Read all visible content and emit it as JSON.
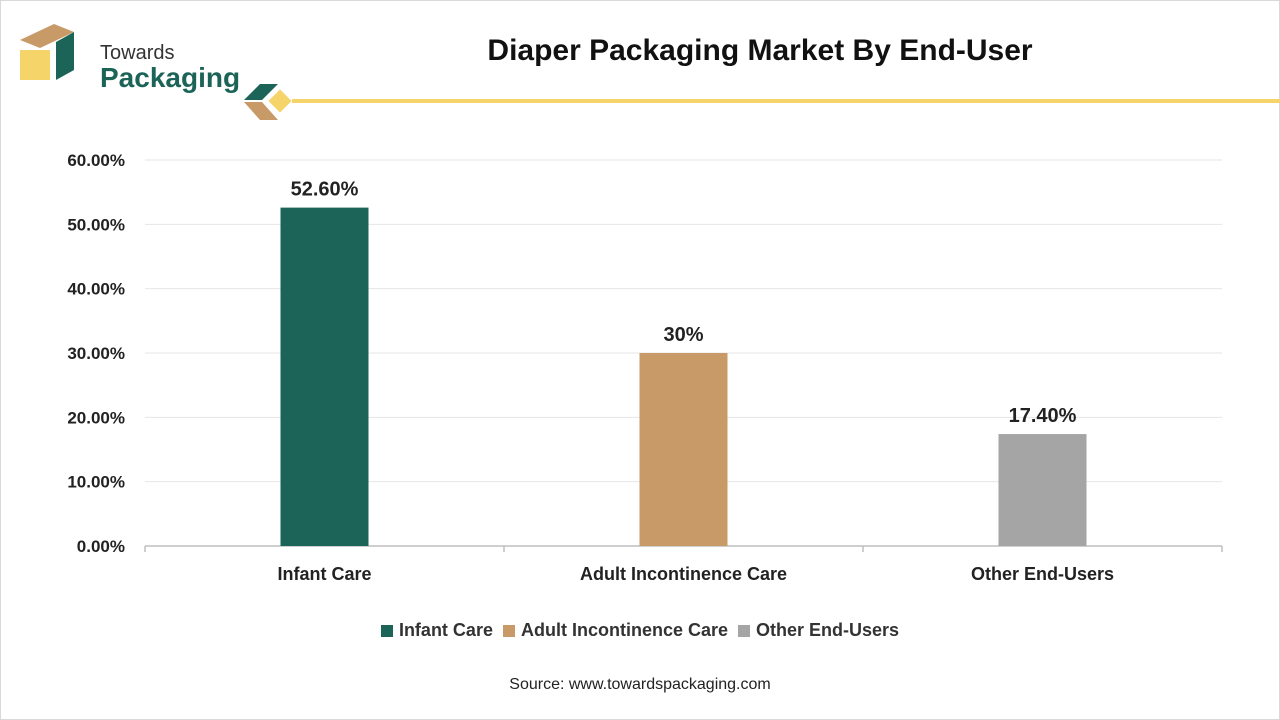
{
  "brand": {
    "line1": "Towards",
    "line2": "Packaging"
  },
  "title": "Diaper Packaging Market By End-User",
  "colors": {
    "brand_green": "#1b6457",
    "brand_tan": "#c89a68",
    "brand_yellow": "#f5d469",
    "bar_grey": "#a5a5a5"
  },
  "chart_data": {
    "type": "bar",
    "categories": [
      "Infant Care",
      "Adult Incontinence Care",
      "Other End-Users"
    ],
    "values": [
      52.6,
      30,
      17.4
    ],
    "data_labels": [
      "52.60%",
      "30%",
      "17.40%"
    ],
    "colors": [
      "#1b6457",
      "#c89a68",
      "#a5a5a5"
    ],
    "ylim": [
      0,
      60
    ],
    "yticks": [
      0,
      10,
      20,
      30,
      40,
      50,
      60
    ],
    "ytick_labels": [
      "0.00%",
      "10.00%",
      "20.00%",
      "30.00%",
      "40.00%",
      "50.00%",
      "60.00%"
    ],
    "grid": true,
    "legend": {
      "placement": "bottom",
      "entries": [
        "Infant Care",
        "Adult Incontinence Care",
        "Other End-Users"
      ]
    }
  },
  "source": "Source: www.towardspackaging.com"
}
